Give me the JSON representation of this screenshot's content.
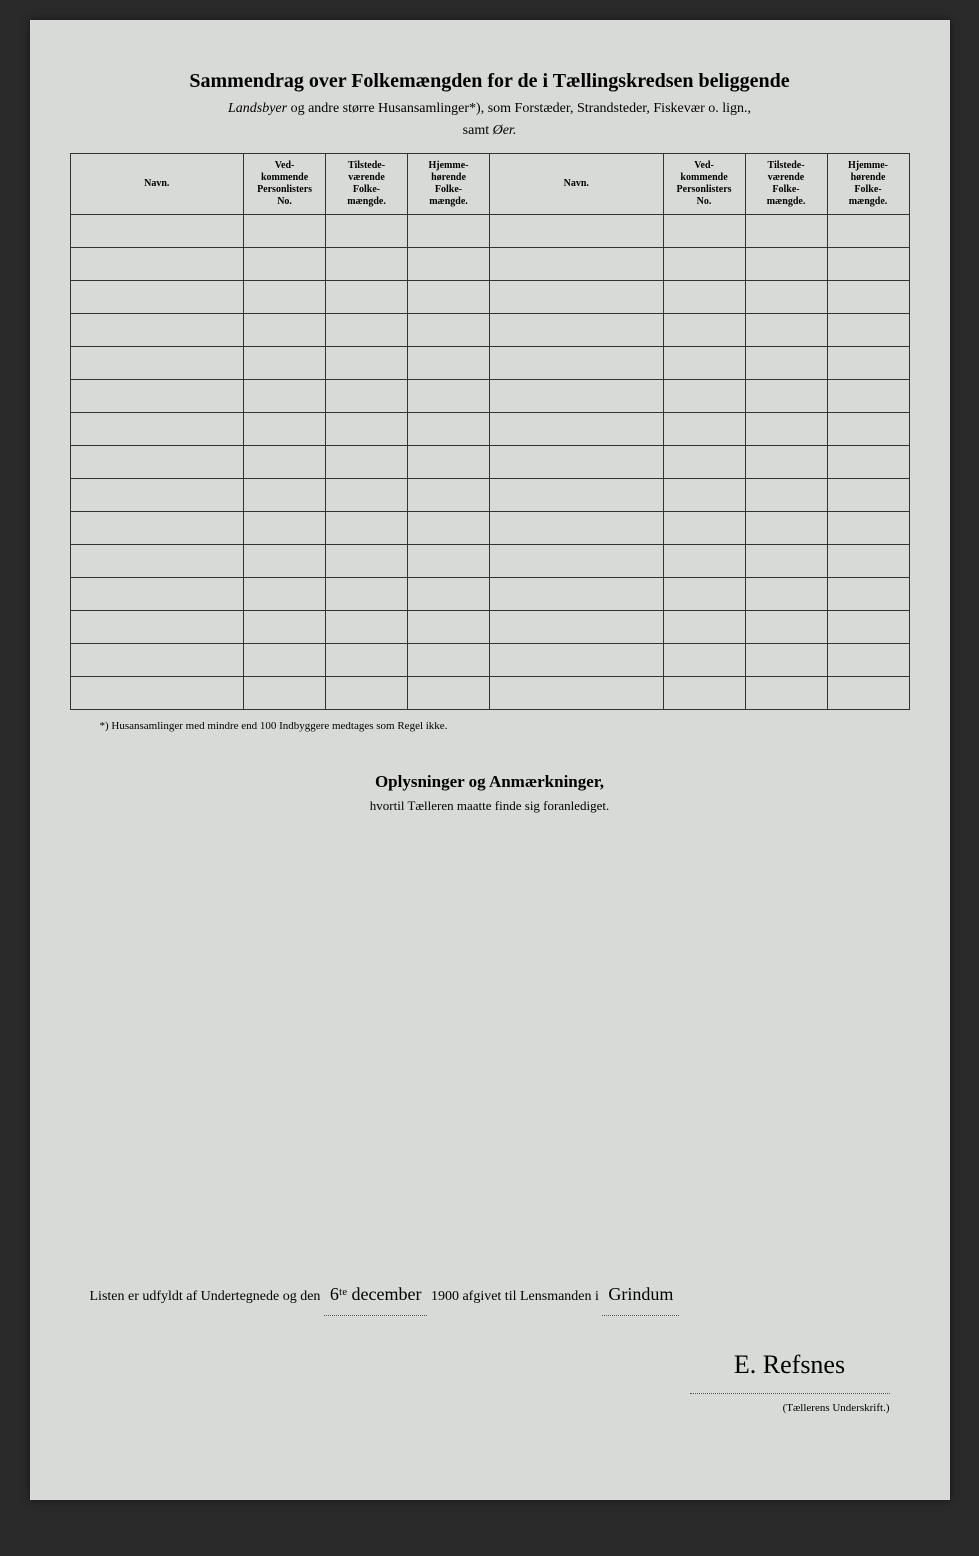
{
  "header": {
    "title": "Sammendrag over Folkemængden for de i Tællingskredsen beliggende",
    "subtitle_lead_em": "Landsbyer",
    "subtitle_rest": " og andre større Husansamlinger*), som Forstæder, Strandsteder, Fiskevær o. lign.,",
    "subtitle2_pre": "samt ",
    "subtitle2_em": "Øer."
  },
  "table": {
    "cols": {
      "navn": "Navn.",
      "vedk": "Ved-\nkommende\nPersonlisters\nNo.",
      "tilst": "Tilstede-\nværende\nFolke-\nmængde.",
      "hjemme": "Hjemme-\nhørende\nFolke-\nmængde."
    },
    "row_count": 15
  },
  "footnote": "*)  Husansamlinger med mindre end 100 Indbyggere medtages som Regel ikke.",
  "section2": {
    "title": "Oplysninger og Anmærkninger,",
    "sub": "hvortil Tælleren maatte finde sig foranlediget."
  },
  "bottom": {
    "line_pre": "Listen er udfyldt af Undertegnede og den ",
    "date_day": "6ᵗᵉ december",
    "year": " 1900 ",
    "line_mid": "afgivet til Lensmanden i ",
    "place": "Grindum",
    "signature": "E. Refsnes",
    "sign_caption": "(Tællerens Underskrift.)"
  }
}
